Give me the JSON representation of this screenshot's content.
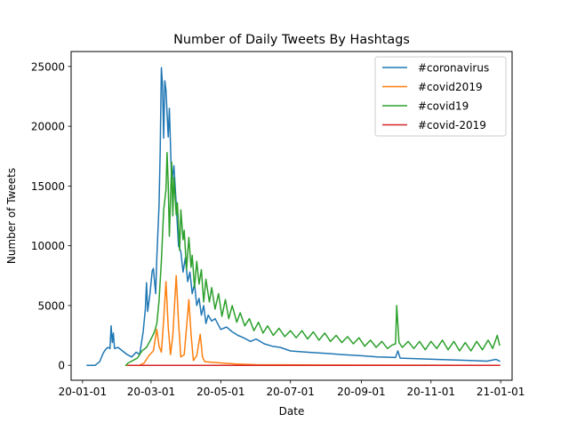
{
  "chart_data": {
    "type": "line",
    "title": "Number of Daily Tweets By Hashtags",
    "xlabel": "Date",
    "ylabel": "Number of Tweets",
    "x_ticks": [
      "20-01-01",
      "20-03-01",
      "20-05-01",
      "20-07-01",
      "20-09-01",
      "20-11-01",
      "21-01-01"
    ],
    "y_ticks": [
      0,
      5000,
      10000,
      15000,
      20000,
      25000
    ],
    "y_tick_labels": [
      "0",
      "5000",
      "10000",
      "15000",
      "20000",
      "25000"
    ],
    "xlim": [
      "2019-12-22",
      "2021-01-11"
    ],
    "ylim": [
      -1250,
      26250
    ],
    "grid": false,
    "legend_position": "top-right",
    "series": [
      {
        "name": "#coronavirus",
        "color": "#1f77b4",
        "points": [
          [
            "2020-01-05",
            0
          ],
          [
            "2020-01-12",
            0
          ],
          [
            "2020-01-16",
            300
          ],
          [
            "2020-01-19",
            1000
          ],
          [
            "2020-01-21",
            1300
          ],
          [
            "2020-01-23",
            1500
          ],
          [
            "2020-01-25",
            1400
          ],
          [
            "2020-01-26",
            3300
          ],
          [
            "2020-01-27",
            1900
          ],
          [
            "2020-01-28",
            2700
          ],
          [
            "2020-01-29",
            1400
          ],
          [
            "2020-02-01",
            1500
          ],
          [
            "2020-02-05",
            1200
          ],
          [
            "2020-02-09",
            900
          ],
          [
            "2020-02-13",
            700
          ],
          [
            "2020-02-17",
            1100
          ],
          [
            "2020-02-20",
            900
          ],
          [
            "2020-02-23",
            2800
          ],
          [
            "2020-02-25",
            4700
          ],
          [
            "2020-02-26",
            6900
          ],
          [
            "2020-02-27",
            4500
          ],
          [
            "2020-02-29",
            6000
          ],
          [
            "2020-03-02",
            7900
          ],
          [
            "2020-03-03",
            8100
          ],
          [
            "2020-03-05",
            6000
          ],
          [
            "2020-03-06",
            9000
          ],
          [
            "2020-03-08",
            13400
          ],
          [
            "2020-03-09",
            18000
          ],
          [
            "2020-03-10",
            24900
          ],
          [
            "2020-03-11",
            23500
          ],
          [
            "2020-03-12",
            19000
          ],
          [
            "2020-03-13",
            23800
          ],
          [
            "2020-03-14",
            23000
          ],
          [
            "2020-03-16",
            19100
          ],
          [
            "2020-03-17",
            21500
          ],
          [
            "2020-03-19",
            15200
          ],
          [
            "2020-03-21",
            16700
          ],
          [
            "2020-03-23",
            13500
          ],
          [
            "2020-03-25",
            10000
          ],
          [
            "2020-03-27",
            9500
          ],
          [
            "2020-03-29",
            7800
          ],
          [
            "2020-03-31",
            9000
          ],
          [
            "2020-04-02",
            7000
          ],
          [
            "2020-04-04",
            7800
          ],
          [
            "2020-04-06",
            6000
          ],
          [
            "2020-04-08",
            6800
          ],
          [
            "2020-04-10",
            5000
          ],
          [
            "2020-04-12",
            5600
          ],
          [
            "2020-04-14",
            4200
          ],
          [
            "2020-04-16",
            5000
          ],
          [
            "2020-04-18",
            3500
          ],
          [
            "2020-04-20",
            4200
          ],
          [
            "2020-04-23",
            3700
          ],
          [
            "2020-04-26",
            3900
          ],
          [
            "2020-05-01",
            3000
          ],
          [
            "2020-05-06",
            3200
          ],
          [
            "2020-05-11",
            2800
          ],
          [
            "2020-05-16",
            2500
          ],
          [
            "2020-05-21",
            2300
          ],
          [
            "2020-05-27",
            2000
          ],
          [
            "2020-06-01",
            2200
          ],
          [
            "2020-06-08",
            1800
          ],
          [
            "2020-06-15",
            1600
          ],
          [
            "2020-06-22",
            1500
          ],
          [
            "2020-07-01",
            1200
          ],
          [
            "2020-07-15",
            1100
          ],
          [
            "2020-08-01",
            1000
          ],
          [
            "2020-08-15",
            900
          ],
          [
            "2020-09-01",
            800
          ],
          [
            "2020-09-15",
            700
          ],
          [
            "2020-10-01",
            650
          ],
          [
            "2020-10-03",
            1200
          ],
          [
            "2020-10-05",
            600
          ],
          [
            "2020-10-20",
            550
          ],
          [
            "2020-11-05",
            500
          ],
          [
            "2020-11-20",
            450
          ],
          [
            "2020-12-05",
            400
          ],
          [
            "2020-12-20",
            350
          ],
          [
            "2020-12-28",
            500
          ],
          [
            "2020-12-31",
            350
          ]
        ]
      },
      {
        "name": "#covid2019",
        "color": "#ff7f0e",
        "points": [
          [
            "2020-02-08",
            0
          ],
          [
            "2020-02-20",
            0
          ],
          [
            "2020-02-24",
            200
          ],
          [
            "2020-02-28",
            800
          ],
          [
            "2020-03-03",
            1200
          ],
          [
            "2020-03-05",
            2400
          ],
          [
            "2020-03-06",
            3000
          ],
          [
            "2020-03-08",
            1600
          ],
          [
            "2020-03-10",
            1100
          ],
          [
            "2020-03-12",
            3800
          ],
          [
            "2020-03-14",
            7000
          ],
          [
            "2020-03-16",
            3200
          ],
          [
            "2020-03-18",
            900
          ],
          [
            "2020-03-20",
            2500
          ],
          [
            "2020-03-23",
            7500
          ],
          [
            "2020-03-25",
            3600
          ],
          [
            "2020-03-27",
            700
          ],
          [
            "2020-03-30",
            900
          ],
          [
            "2020-04-02",
            4300
          ],
          [
            "2020-04-03",
            5500
          ],
          [
            "2020-04-05",
            2600
          ],
          [
            "2020-04-07",
            400
          ],
          [
            "2020-04-10",
            800
          ],
          [
            "2020-04-13",
            2600
          ],
          [
            "2020-04-15",
            700
          ],
          [
            "2020-04-17",
            300
          ],
          [
            "2020-05-01",
            200
          ],
          [
            "2020-05-15",
            100
          ],
          [
            "2020-06-01",
            50
          ],
          [
            "2020-08-01",
            20
          ],
          [
            "2020-12-31",
            0
          ]
        ]
      },
      {
        "name": "#covid19",
        "color": "#2ca02c",
        "points": [
          [
            "2020-02-08",
            0
          ],
          [
            "2020-02-10",
            200
          ],
          [
            "2020-02-14",
            400
          ],
          [
            "2020-02-18",
            600
          ],
          [
            "2020-02-22",
            1200
          ],
          [
            "2020-02-26",
            1500
          ],
          [
            "2020-03-01",
            2200
          ],
          [
            "2020-03-04",
            2800
          ],
          [
            "2020-03-06",
            3500
          ],
          [
            "2020-03-08",
            5400
          ],
          [
            "2020-03-10",
            8700
          ],
          [
            "2020-03-12",
            13000
          ],
          [
            "2020-03-14",
            14700
          ],
          [
            "2020-03-15",
            17800
          ],
          [
            "2020-03-16",
            15200
          ],
          [
            "2020-03-17",
            10800
          ],
          [
            "2020-03-19",
            17000
          ],
          [
            "2020-03-20",
            12500
          ],
          [
            "2020-03-21",
            15700
          ],
          [
            "2020-03-23",
            12600
          ],
          [
            "2020-03-24",
            13600
          ],
          [
            "2020-03-26",
            9600
          ],
          [
            "2020-03-27",
            13000
          ],
          [
            "2020-03-29",
            10500
          ],
          [
            "2020-03-30",
            11300
          ],
          [
            "2020-04-01",
            8000
          ],
          [
            "2020-04-03",
            10700
          ],
          [
            "2020-04-05",
            8200
          ],
          [
            "2020-04-06",
            9200
          ],
          [
            "2020-04-08",
            6500
          ],
          [
            "2020-04-10",
            8700
          ],
          [
            "2020-04-12",
            6800
          ],
          [
            "2020-04-14",
            8000
          ],
          [
            "2020-04-16",
            5300
          ],
          [
            "2020-04-18",
            7200
          ],
          [
            "2020-04-21",
            5300
          ],
          [
            "2020-04-23",
            6500
          ],
          [
            "2020-04-26",
            4700
          ],
          [
            "2020-04-29",
            6000
          ],
          [
            "2020-05-02",
            4100
          ],
          [
            "2020-05-05",
            5500
          ],
          [
            "2020-05-08",
            3900
          ],
          [
            "2020-05-11",
            5000
          ],
          [
            "2020-05-15",
            3600
          ],
          [
            "2020-05-18",
            4400
          ],
          [
            "2020-05-22",
            3300
          ],
          [
            "2020-05-26",
            3900
          ],
          [
            "2020-05-30",
            2900
          ],
          [
            "2020-06-03",
            3600
          ],
          [
            "2020-06-07",
            2700
          ],
          [
            "2020-06-11",
            3300
          ],
          [
            "2020-06-16",
            2500
          ],
          [
            "2020-06-21",
            3100
          ],
          [
            "2020-06-26",
            2400
          ],
          [
            "2020-07-01",
            2900
          ],
          [
            "2020-07-06",
            2300
          ],
          [
            "2020-07-11",
            2900
          ],
          [
            "2020-07-16",
            2200
          ],
          [
            "2020-07-21",
            2800
          ],
          [
            "2020-07-26",
            2100
          ],
          [
            "2020-07-31",
            2700
          ],
          [
            "2020-08-05",
            2000
          ],
          [
            "2020-08-10",
            2500
          ],
          [
            "2020-08-15",
            1900
          ],
          [
            "2020-08-20",
            2400
          ],
          [
            "2020-08-25",
            1800
          ],
          [
            "2020-08-30",
            2300
          ],
          [
            "2020-09-04",
            1600
          ],
          [
            "2020-09-09",
            2100
          ],
          [
            "2020-09-14",
            1500
          ],
          [
            "2020-09-19",
            2000
          ],
          [
            "2020-09-24",
            1400
          ],
          [
            "2020-09-28",
            1700
          ],
          [
            "2020-10-01",
            1800
          ],
          [
            "2020-10-02",
            5000
          ],
          [
            "2020-10-04",
            1900
          ],
          [
            "2020-10-07",
            1500
          ],
          [
            "2020-10-12",
            2000
          ],
          [
            "2020-10-17",
            1400
          ],
          [
            "2020-10-22",
            2000
          ],
          [
            "2020-10-27",
            1300
          ],
          [
            "2020-11-01",
            2000
          ],
          [
            "2020-11-06",
            1400
          ],
          [
            "2020-11-11",
            2100
          ],
          [
            "2020-11-16",
            1300
          ],
          [
            "2020-11-21",
            2000
          ],
          [
            "2020-11-26",
            1200
          ],
          [
            "2020-12-01",
            1900
          ],
          [
            "2020-12-06",
            1200
          ],
          [
            "2020-12-11",
            2000
          ],
          [
            "2020-12-16",
            1300
          ],
          [
            "2020-12-21",
            2100
          ],
          [
            "2020-12-25",
            1400
          ],
          [
            "2020-12-29",
            2500
          ],
          [
            "2020-12-31",
            1700
          ]
        ]
      },
      {
        "name": "#covid-2019",
        "color": "#d62728",
        "points": [
          [
            "2020-02-10",
            0
          ],
          [
            "2020-12-31",
            0
          ]
        ]
      }
    ]
  }
}
